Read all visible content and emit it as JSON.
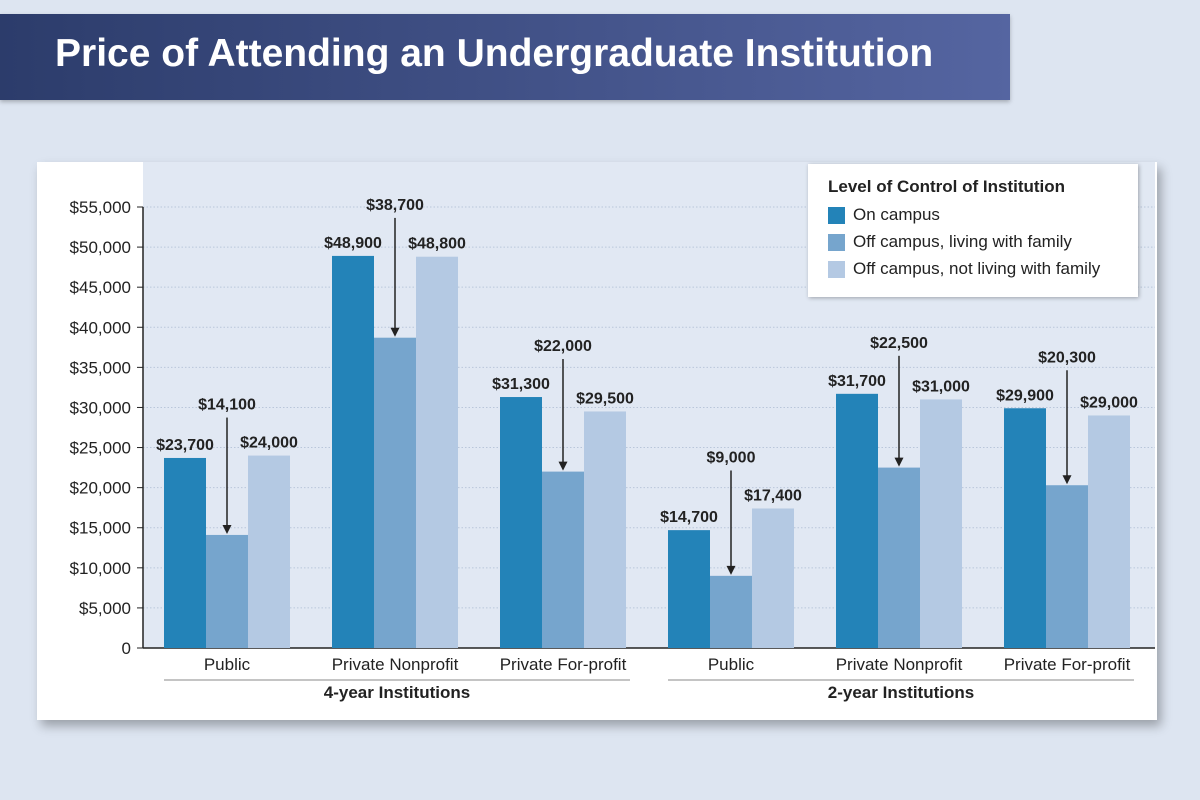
{
  "title": "Price of Attending an Undergraduate Institution",
  "chart_data": {
    "type": "bar",
    "title": "Price of Attending an Undergraduate Institution",
    "ylim": [
      0,
      55000
    ],
    "yticks": [
      0,
      5000,
      10000,
      15000,
      20000,
      25000,
      30000,
      35000,
      40000,
      45000,
      50000,
      55000
    ],
    "ytick_labels": [
      "0",
      "$5,000",
      "$10,000",
      "$15,000",
      "$20,000",
      "$25,000",
      "$30,000",
      "$35,000",
      "$40,000",
      "$45,000",
      "$50,000",
      "$55,000"
    ],
    "grid": true,
    "categories": [
      "Public",
      "Private Nonprofit",
      "Private For-profit",
      "Public",
      "Private Nonprofit",
      "Private For-profit"
    ],
    "groups": [
      {
        "label": "4-year Institutions",
        "categories": [
          0,
          1,
          2
        ]
      },
      {
        "label": "2-year Institutions",
        "categories": [
          3,
          4,
          5
        ]
      }
    ],
    "legend_title": "Level of Control of Institution",
    "legend_placement": "top-right",
    "series": [
      {
        "name": "On campus",
        "color": "#2383b8",
        "values": [
          23700,
          48900,
          31300,
          14700,
          31700,
          29900
        ],
        "labels": [
          "$23,700",
          "$48,900",
          "$31,300",
          "$14,700",
          "$31,700",
          "$29,900"
        ]
      },
      {
        "name": "Off campus, living with family",
        "color": "#76a5cd",
        "values": [
          14100,
          38700,
          22000,
          9000,
          22500,
          20300
        ],
        "labels": [
          "$14,100",
          "$38,700",
          "$22,000",
          "$9,000",
          "$22,500",
          "$20,300"
        ]
      },
      {
        "name": "Off campus, not living with family",
        "color": "#b4c9e3",
        "values": [
          24000,
          48800,
          29500,
          17400,
          31000,
          29000
        ],
        "labels": [
          "$24,000",
          "$48,800",
          "$29,500",
          "$17,400",
          "$31,000",
          "$29,000"
        ]
      }
    ]
  }
}
